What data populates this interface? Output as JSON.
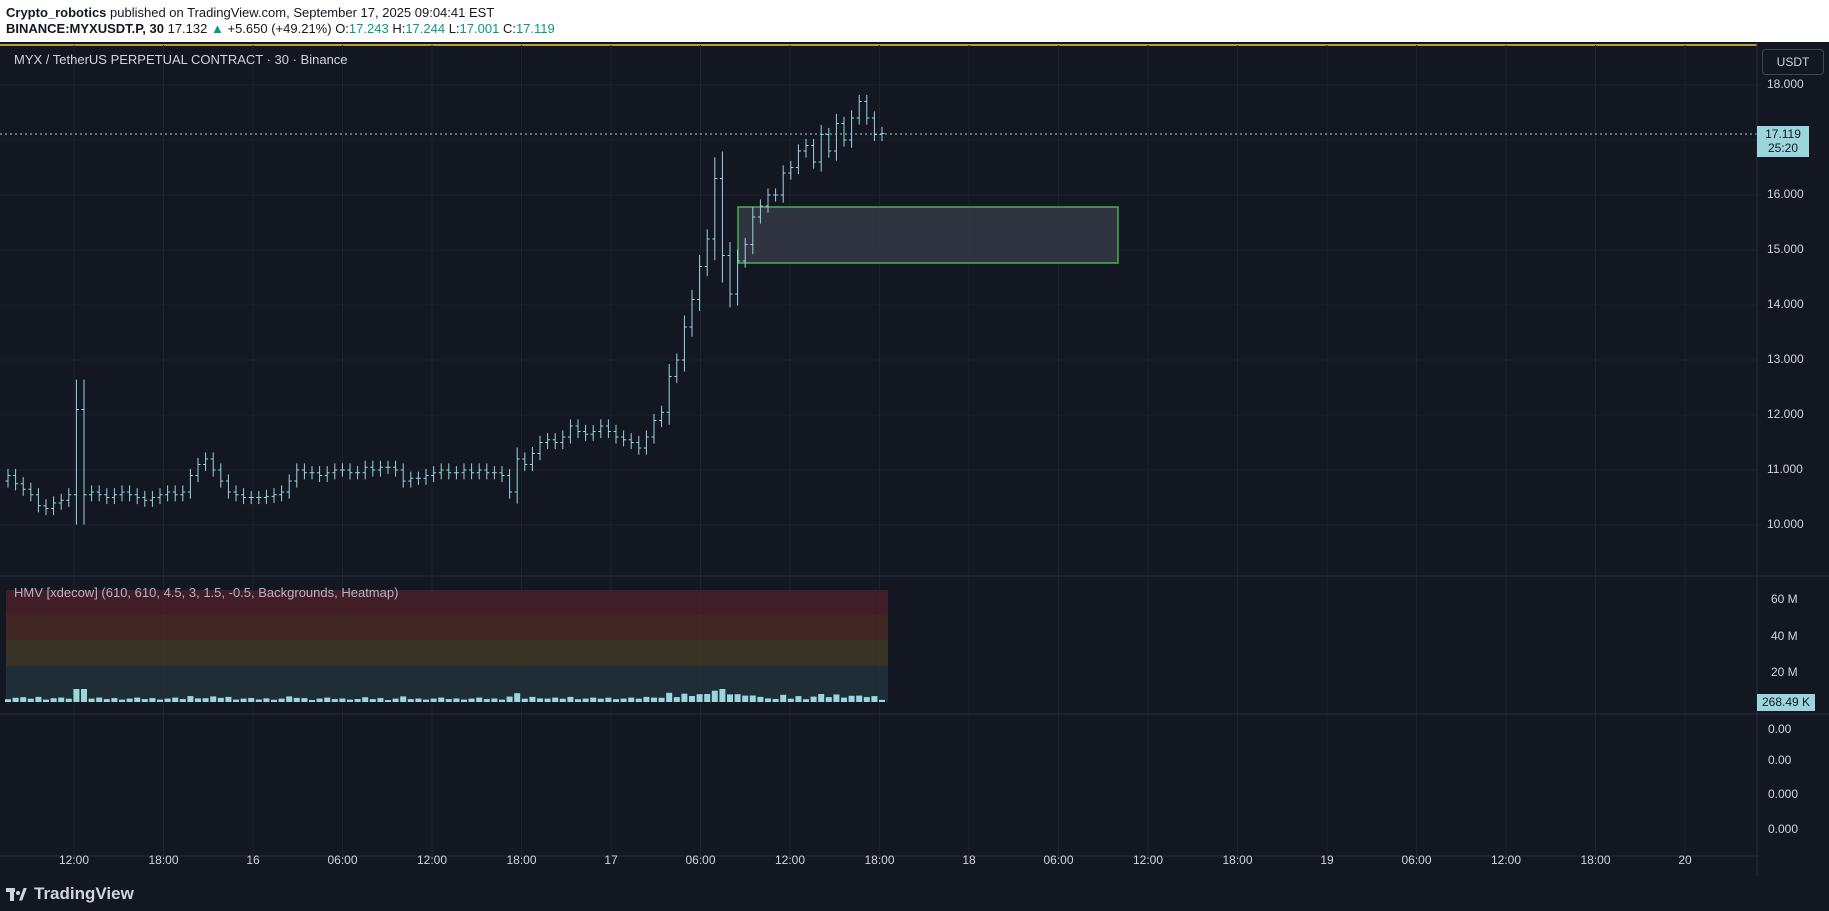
{
  "header": {
    "author": "Crypto_robotics",
    "published": " published on TradingView.com, September 17, 2025 09:04:41 EST",
    "ticker": "BINANCE:MYXUSDT.P, 30",
    "last": "17.132",
    "change": "+5.650 (+49.21%)",
    "o_label": "O:",
    "o": "17.243",
    "h_label": "H:",
    "h": "17.244",
    "l_label": "L:",
    "l": "17.001",
    "c_label": "C:",
    "c": "17.119"
  },
  "chart": {
    "symbol_title": "MYX / TetherUS PERPETUAL CONTRACT · 30 · Binance",
    "currency_button": "USDT",
    "price_axis": [
      "18.000",
      "17.000",
      "16.000",
      "15.000",
      "14.000",
      "13.000",
      "12.000",
      "11.000",
      "10.000"
    ],
    "last_price": "17.119",
    "countdown": "25:20",
    "indicator_title": "HMV [xdecow] (610, 610, 4.5, 3, 1.5, -0.5, Backgrounds, Heatmap)",
    "volume_axis": [
      "60 M",
      "40 M",
      "20 M"
    ],
    "volume_last": "268.49 K",
    "osc_axis": [
      "0.00",
      "0.00",
      "0.000",
      "0.000"
    ],
    "time_axis": [
      "12:00",
      "18:00",
      "16",
      "06:00",
      "12:00",
      "18:00",
      "17",
      "06:00",
      "12:00",
      "18:00",
      "18",
      "06:00",
      "12:00",
      "18:00",
      "19",
      "06:00",
      "12:00",
      "18:00",
      "20"
    ],
    "colors": {
      "background": "#131722",
      "candle": "#9ad6dc",
      "zone_border": "#4caf50",
      "header_line": "#f0c84a"
    }
  },
  "chart_data": {
    "type": "candlestick",
    "interval": "30",
    "ylim": [
      9.5,
      18.5
    ],
    "close": [
      10.9,
      10.75,
      10.65,
      10.55,
      10.35,
      10.3,
      10.4,
      10.45,
      10.55,
      12.1,
      10.55,
      10.6,
      10.55,
      10.5,
      10.55,
      10.6,
      10.55,
      10.5,
      10.45,
      10.5,
      10.55,
      10.6,
      10.55,
      10.6,
      10.9,
      11.1,
      11.2,
      11.0,
      10.8,
      10.6,
      10.55,
      10.5,
      10.5,
      10.5,
      10.52,
      10.55,
      10.6,
      10.8,
      11.0,
      10.95,
      10.95,
      10.9,
      10.95,
      11.0,
      11.0,
      10.95,
      10.95,
      11.05,
      11.0,
      11.05,
      11.05,
      11.0,
      10.8,
      10.85,
      10.85,
      10.9,
      10.95,
      11.0,
      10.95,
      10.95,
      11.0,
      10.95,
      11.0,
      10.95,
      10.95,
      10.9,
      10.6,
      11.2,
      11.1,
      11.3,
      11.5,
      11.55,
      11.5,
      11.6,
      11.8,
      11.7,
      11.65,
      11.7,
      11.8,
      11.7,
      11.6,
      11.55,
      11.5,
      11.4,
      11.6,
      11.9,
      12.05,
      12.7,
      13.0,
      13.6,
      14.1,
      14.7,
      15.2,
      16.3,
      14.9,
      14.2,
      14.8,
      15.1,
      15.6,
      15.8,
      16.0,
      16.0,
      16.4,
      16.5,
      16.8,
      16.9,
      16.6,
      17.1,
      16.8,
      17.3,
      17.0,
      17.4,
      17.7,
      17.4,
      17.1,
      17.119
    ],
    "volume_max": 60000000,
    "zone": {
      "price_top": 15.8,
      "price_bottom": 14.8
    }
  },
  "footer": {
    "logo": "TradingView"
  }
}
